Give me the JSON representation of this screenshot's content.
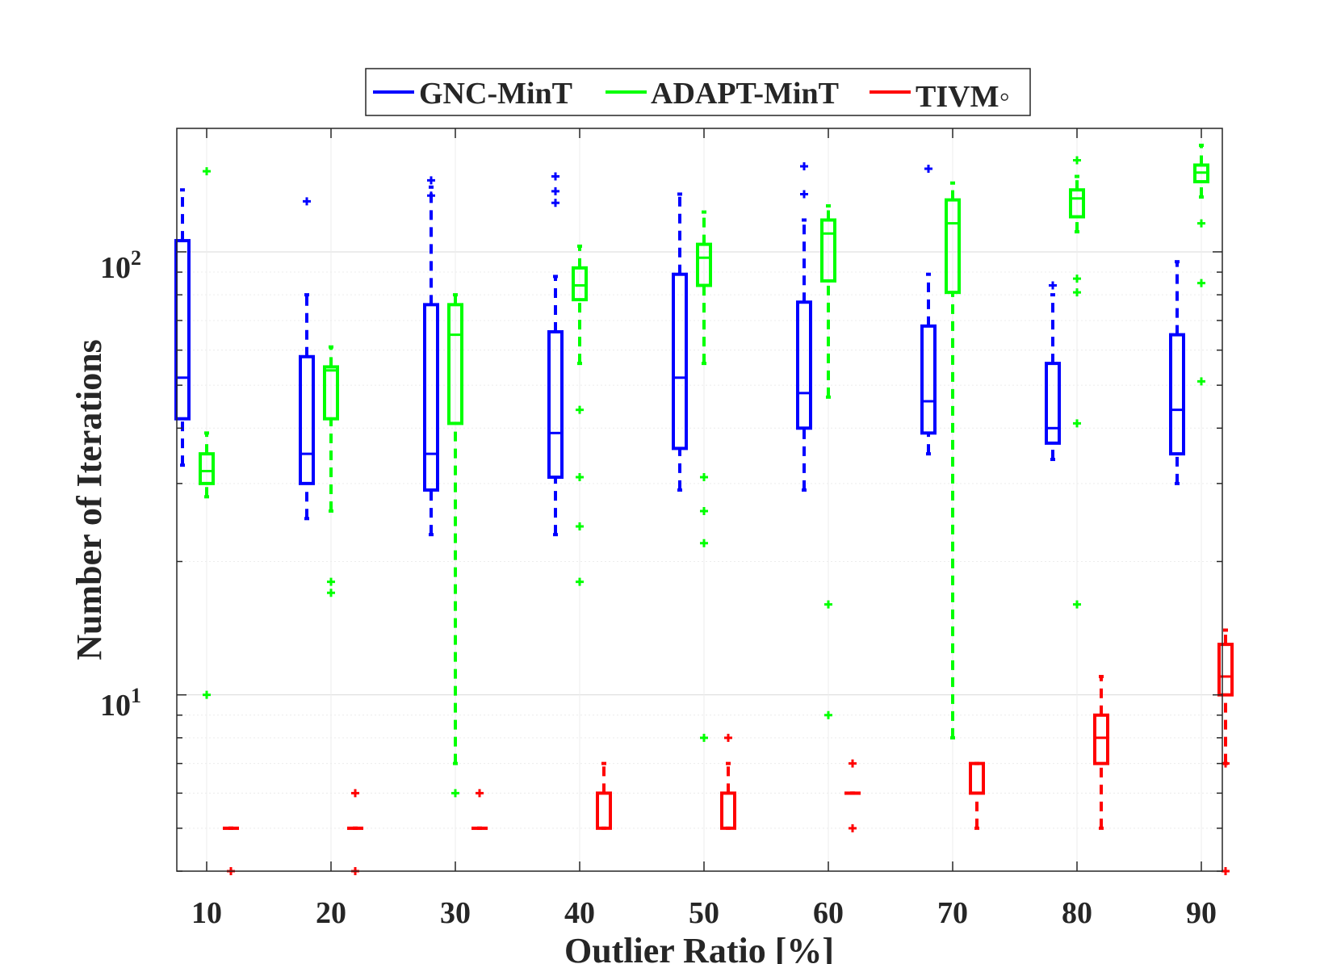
{
  "chart_data": {
    "type": "boxplot",
    "xlabel": "Outlier Ratio [%]",
    "ylabel": "Number of Iterations",
    "yscale": "log",
    "ylim": [
      4,
      190
    ],
    "yticks": [
      {
        "base": "10",
        "exp": "1",
        "value": 10
      },
      {
        "base": "10",
        "exp": "2",
        "value": 100
      }
    ],
    "categories": [
      "10",
      "20",
      "30",
      "40",
      "50",
      "60",
      "70",
      "80",
      "90"
    ],
    "grid": true,
    "legend": {
      "placement": "top-outside"
    },
    "series": [
      {
        "name": "GNC-MinT",
        "color": "#0000ff",
        "boxes": [
          {
            "whisker_low": 33,
            "q1": 42,
            "median": 52,
            "q3": 106,
            "whisker_high": 138,
            "outliers": []
          },
          {
            "whisker_low": 25,
            "q1": 30,
            "median": 35,
            "q3": 58,
            "whisker_high": 80,
            "outliers": [
              130
            ]
          },
          {
            "whisker_low": 23,
            "q1": 29,
            "median": 35,
            "q3": 76,
            "whisker_high": 140,
            "outliers": [
              134,
              145
            ]
          },
          {
            "whisker_low": 23,
            "q1": 31,
            "median": 39,
            "q3": 66,
            "whisker_high": 88,
            "outliers": [
              129,
              137,
              148
            ]
          },
          {
            "whisker_low": 29,
            "q1": 36,
            "median": 52,
            "q3": 89,
            "whisker_high": 135,
            "outliers": []
          },
          {
            "whisker_low": 29,
            "q1": 40,
            "median": 48,
            "q3": 77,
            "whisker_high": 118,
            "outliers": [
              135,
              156
            ]
          },
          {
            "whisker_low": 35,
            "q1": 39,
            "median": 46,
            "q3": 68,
            "whisker_high": 89,
            "outliers": [
              154
            ]
          },
          {
            "whisker_low": 34,
            "q1": 37,
            "median": 40,
            "q3": 56,
            "whisker_high": 80,
            "outliers": [
              84
            ]
          },
          {
            "whisker_low": 30,
            "q1": 35,
            "median": 44,
            "q3": 65,
            "whisker_high": 95,
            "outliers": []
          }
        ]
      },
      {
        "name": "ADAPT-MinT",
        "color": "#00ff00",
        "boxes": [
          {
            "whisker_low": 28,
            "q1": 30,
            "median": 32,
            "q3": 35,
            "whisker_high": 39,
            "outliers": [
              10,
              152
            ]
          },
          {
            "whisker_low": 26,
            "q1": 42,
            "median": 54,
            "q3": 55,
            "whisker_high": 61,
            "outliers": [
              17,
              18
            ]
          },
          {
            "whisker_low": 7,
            "q1": 41,
            "median": 65,
            "q3": 76,
            "whisker_high": 80,
            "outliers": [
              6
            ]
          },
          {
            "whisker_low": 56,
            "q1": 78,
            "median": 84,
            "q3": 92,
            "whisker_high": 103,
            "outliers": [
              18,
              24,
              31,
              44
            ]
          },
          {
            "whisker_low": 56,
            "q1": 84,
            "median": 97,
            "q3": 104,
            "whisker_high": 123,
            "outliers": [
              8,
              22,
              26,
              31
            ]
          },
          {
            "whisker_low": 47,
            "q1": 86,
            "median": 110,
            "q3": 118,
            "whisker_high": 127,
            "outliers": [
              9,
              16
            ]
          },
          {
            "whisker_low": 8,
            "q1": 81,
            "median": 116,
            "q3": 131,
            "whisker_high": 143,
            "outliers": []
          },
          {
            "whisker_low": 111,
            "q1": 120,
            "median": 132,
            "q3": 138,
            "whisker_high": 148,
            "outliers": [
              16,
              41,
              81,
              87,
              161
            ]
          },
          {
            "whisker_low": 133,
            "q1": 144,
            "median": 151,
            "q3": 157,
            "whisker_high": 174,
            "outliers": [
              51,
              85,
              116
            ]
          }
        ]
      },
      {
        "name": "TIVM◦",
        "color": "#ff0000",
        "boxes": [
          {
            "whisker_low": 5,
            "q1": 5,
            "median": 5,
            "q3": 5,
            "whisker_high": 5,
            "outliers": [
              4
            ]
          },
          {
            "whisker_low": 5,
            "q1": 5,
            "median": 5,
            "q3": 5,
            "whisker_high": 5,
            "outliers": [
              4,
              6
            ]
          },
          {
            "whisker_low": 5,
            "q1": 5,
            "median": 5,
            "q3": 5,
            "whisker_high": 5,
            "outliers": [
              6
            ]
          },
          {
            "whisker_low": 5,
            "q1": 5,
            "median": 5,
            "q3": 6,
            "whisker_high": 7,
            "outliers": []
          },
          {
            "whisker_low": 5,
            "q1": 5,
            "median": 5,
            "q3": 6,
            "whisker_high": 7,
            "outliers": [
              8
            ]
          },
          {
            "whisker_low": 6,
            "q1": 6,
            "median": 6,
            "q3": 6,
            "whisker_high": 6,
            "outliers": [
              5,
              7
            ]
          },
          {
            "whisker_low": 5,
            "q1": 6,
            "median": 6,
            "q3": 7,
            "whisker_high": 7,
            "outliers": []
          },
          {
            "whisker_low": 5,
            "q1": 7,
            "median": 8,
            "q3": 9,
            "whisker_high": 11,
            "outliers": []
          },
          {
            "whisker_low": 7,
            "q1": 10,
            "median": 11,
            "q3": 13,
            "whisker_high": 14,
            "outliers": [
              4,
              7
            ]
          }
        ]
      }
    ]
  }
}
